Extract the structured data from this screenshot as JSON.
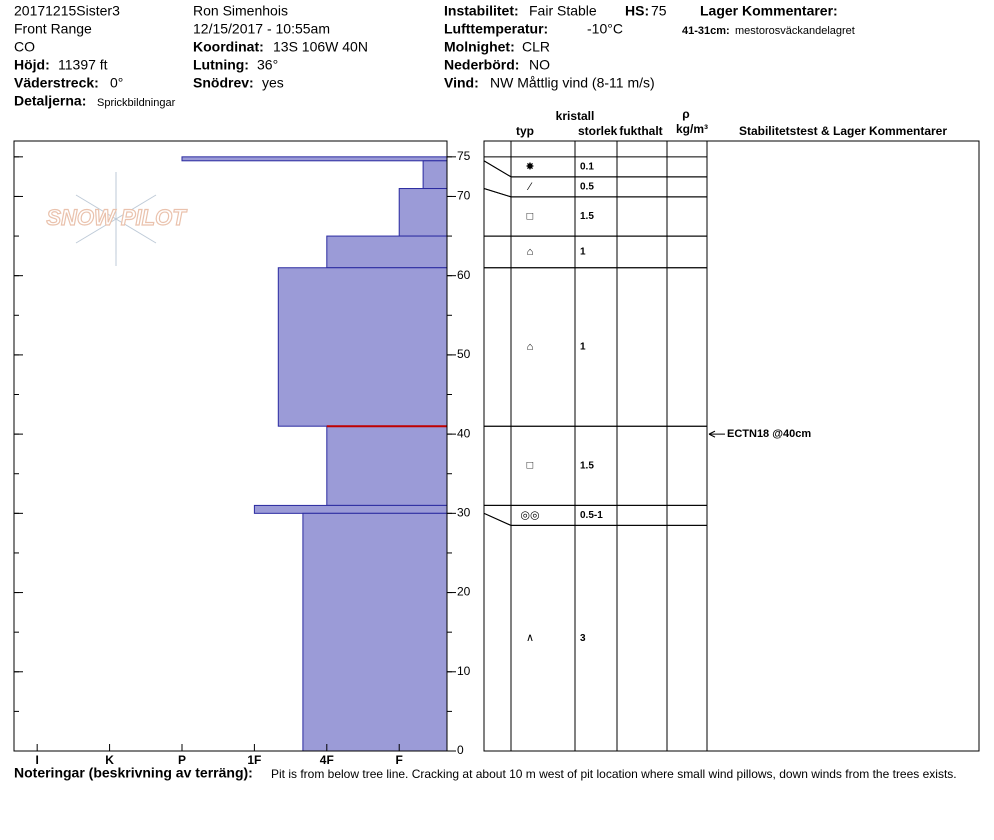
{
  "header": {
    "pit": "20171215Sister3",
    "range": "Front Range",
    "state": "CO",
    "elevation": {
      "label": "Höjd:",
      "value": "11397 ft"
    },
    "aspect": {
      "label": "Väderstreck:",
      "value": "0°"
    },
    "details": {
      "label": "Detaljerna:",
      "value": "Sprickbildningar"
    },
    "observer": "Ron Simenhois",
    "datetime": "12/15/2017 - 10:55am",
    "coordinates": {
      "label": "Koordinat:",
      "value": "13S 106W 40N"
    },
    "slope": {
      "label": "Lutning:",
      "value": "36°"
    },
    "wind_loading": {
      "label": "Snödrev:",
      "value": "yes"
    },
    "stability": {
      "label": "Instabilitet:",
      "value": "Fair Stable"
    },
    "hs": {
      "label": "HS:",
      "value": "75"
    },
    "air_temp": {
      "label": "Lufttemperatur:",
      "value": "-10°C"
    },
    "sky": {
      "label": "Molnighet:",
      "value": "CLR"
    },
    "precip": {
      "label": "Nederbörd:",
      "value": "NO"
    },
    "wind": {
      "label": "Vind:",
      "value": "NW Måttlig vind (8-11 m/s)"
    },
    "layer_comments": {
      "label": "Lager Kommentarer:",
      "range": "41-31cm:",
      "text": "mestorosväckandelagret"
    }
  },
  "logo": "SNOW PILOT",
  "chart_data": {
    "type": "snow-profile",
    "ylim": [
      0,
      77
    ],
    "yticks": [
      0,
      10,
      20,
      30,
      40,
      50,
      60,
      70,
      75
    ],
    "xlim": [
      6.32,
      0.34
    ],
    "xticks": [
      {
        "value": 6,
        "label": "I"
      },
      {
        "value": 5,
        "label": "K"
      },
      {
        "value": 4,
        "label": "P"
      },
      {
        "value": 3,
        "label": "1F"
      },
      {
        "value": 2,
        "label": "4F"
      },
      {
        "value": 1,
        "label": "F"
      }
    ],
    "color": "#9b9bd7",
    "layers": [
      {
        "top": 75,
        "bottom": 74.5,
        "hardness": 4,
        "type": "✸",
        "size": "0.1"
      },
      {
        "top": 74.5,
        "bottom": 71,
        "hardness": 0.67,
        "type": "⁄",
        "size": "0.5"
      },
      {
        "top": 71,
        "bottom": 65,
        "hardness": 1,
        "type": "□",
        "size": "1.5"
      },
      {
        "top": 65,
        "bottom": 61,
        "hardness": 2,
        "type": "⌂",
        "size": "1"
      },
      {
        "top": 61,
        "bottom": 41,
        "hardness": 2.67,
        "type": "⌂",
        "size": "1"
      },
      {
        "top": 41,
        "bottom": 31,
        "hardness": 2,
        "type": "□",
        "size": "1.5"
      },
      {
        "top": 31,
        "bottom": 30,
        "hardness": 3,
        "type": "◎◎",
        "size": "0.5-1"
      },
      {
        "top": 30,
        "bottom": 0,
        "hardness": 2.33,
        "type": "∧",
        "size": "3"
      }
    ],
    "columns": {
      "type": "typ",
      "crystal": "kristall",
      "size": "storlek",
      "moisture": "fukthalt",
      "density": "ρ",
      "density_unit": "kg/m³",
      "comments": "Stabilitetstest & Lager Kommentarer"
    },
    "stability_test": {
      "label": "ECTN18 @40cm",
      "depth": 40
    }
  },
  "notes": {
    "label": "Noteringar (beskrivning av terräng):",
    "text": "Pit is from below tree line.  Cracking at about 10 m west of pit location where small wind pillows, down winds from the trees exists."
  }
}
